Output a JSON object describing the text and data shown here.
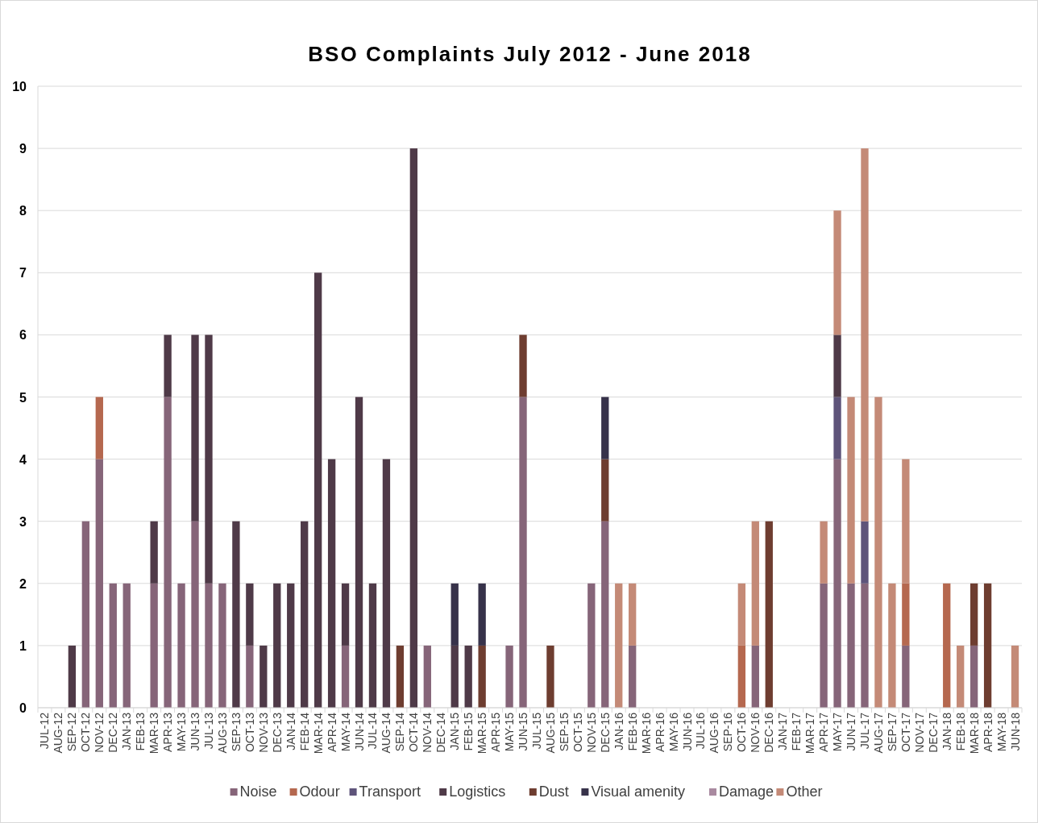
{
  "chart_data": {
    "type": "bar",
    "title": "BSO Complaints  July 2012 - June 2018",
    "stacked": true,
    "grid": "y",
    "legend": "bottom",
    "categories": [
      "JUL-12",
      "AUG-12",
      "SEP-12",
      "OCT-12",
      "NOV-12",
      "DEC-12",
      "JAN-13",
      "FEB-13",
      "MAR-13",
      "APR-13",
      "MAY-13",
      "JUN-13",
      "JUL-13",
      "AUG-13",
      "SEP-13",
      "OCT-13",
      "NOV-13",
      "DEC-13",
      "JAN-14",
      "FEB-14",
      "MAR-14",
      "APR-14",
      "MAY-14",
      "JUN-14",
      "JUL-14",
      "AUG-14",
      "SEP-14",
      "OCT-14",
      "NOV-14",
      "DEC-14",
      "JAN-15",
      "FEB-15",
      "MAR-15",
      "APR-15",
      "MAY-15",
      "JUN-15",
      "JUL-15",
      "AUG-15",
      "SEP-15",
      "OCT-15",
      "NOV-15",
      "DEC-15",
      "JAN-16",
      "FEB-16",
      "MAR-16",
      "APR-16",
      "MAY-16",
      "JUN-16",
      "JUL-16",
      "AUG-16",
      "SEP-16",
      "OCT-16",
      "NOV-16",
      "DEC-16",
      "JAN-17",
      "FEB-17",
      "MAR-17",
      "APR-17",
      "MAY-17",
      "JUN-17",
      "JUL-17",
      "AUG-17",
      "SEP-17",
      "OCT-17",
      "NOV-17",
      "DEC-17",
      "JAN-18",
      "FEB-18",
      "MAR-18",
      "APR-18",
      "MAY-18",
      "JUN-18"
    ],
    "ylim": [
      0,
      10
    ],
    "yticks": [
      0,
      1,
      2,
      3,
      4,
      5,
      6,
      7,
      8,
      9,
      10
    ],
    "series": [
      {
        "name": "Noise",
        "color": "#866579",
        "values": [
          0,
          0,
          0,
          3,
          4,
          2,
          2,
          0,
          2,
          5,
          2,
          3,
          2,
          2,
          0,
          1,
          0,
          0,
          0,
          0,
          0,
          0,
          1,
          0,
          0,
          0,
          0,
          0,
          1,
          0,
          0,
          0,
          0,
          0,
          1,
          5,
          0,
          0,
          0,
          0,
          2,
          3,
          0,
          1,
          0,
          0,
          0,
          0,
          0,
          0,
          0,
          0,
          1,
          0,
          0,
          0,
          0,
          2,
          4,
          2,
          2,
          0,
          0,
          1,
          0,
          0,
          0,
          0,
          1,
          0,
          0,
          0
        ]
      },
      {
        "name": "Odour",
        "color": "#b5684f",
        "values": [
          0,
          0,
          0,
          0,
          1,
          0,
          0,
          0,
          0,
          0,
          0,
          0,
          0,
          0,
          0,
          0,
          0,
          0,
          0,
          0,
          0,
          0,
          0,
          0,
          0,
          0,
          0,
          0,
          0,
          0,
          0,
          0,
          0,
          0,
          0,
          0,
          0,
          0,
          0,
          0,
          0,
          0,
          0,
          0,
          0,
          0,
          0,
          0,
          0,
          0,
          0,
          1,
          0,
          0,
          0,
          0,
          0,
          0,
          0,
          0,
          0,
          0,
          0,
          1,
          0,
          0,
          2,
          0,
          0,
          0,
          0,
          0
        ]
      },
      {
        "name": "Transport",
        "color": "#5e547a",
        "values": [
          0,
          0,
          0,
          0,
          0,
          0,
          0,
          0,
          0,
          0,
          0,
          0,
          0,
          0,
          0,
          0,
          0,
          0,
          0,
          0,
          0,
          0,
          0,
          0,
          0,
          0,
          0,
          0,
          0,
          0,
          0,
          0,
          0,
          0,
          0,
          0,
          0,
          0,
          0,
          0,
          0,
          0,
          0,
          0,
          0,
          0,
          0,
          0,
          0,
          0,
          0,
          0,
          0,
          0,
          0,
          0,
          0,
          0,
          1,
          0,
          1,
          0,
          0,
          0,
          0,
          0,
          0,
          0,
          0,
          0,
          0,
          0
        ]
      },
      {
        "name": "Logistics",
        "color": "#4f3a48",
        "values": [
          0,
          0,
          1,
          0,
          0,
          0,
          0,
          0,
          1,
          1,
          0,
          3,
          4,
          0,
          3,
          1,
          1,
          2,
          2,
          3,
          7,
          4,
          1,
          5,
          2,
          4,
          0,
          9,
          0,
          0,
          1,
          1,
          0,
          0,
          0,
          0,
          0,
          0,
          0,
          0,
          0,
          0,
          0,
          0,
          0,
          0,
          0,
          0,
          0,
          0,
          0,
          0,
          0,
          0,
          0,
          0,
          0,
          0,
          1,
          0,
          0,
          0,
          0,
          0,
          0,
          0,
          0,
          0,
          0,
          0,
          0,
          0
        ]
      },
      {
        "name": "Dust",
        "color": "#6e3d30",
        "values": [
          0,
          0,
          0,
          0,
          0,
          0,
          0,
          0,
          0,
          0,
          0,
          0,
          0,
          0,
          0,
          0,
          0,
          0,
          0,
          0,
          0,
          0,
          0,
          0,
          0,
          0,
          1,
          0,
          0,
          0,
          0,
          0,
          1,
          0,
          0,
          1,
          0,
          1,
          0,
          0,
          0,
          1,
          0,
          0,
          0,
          0,
          0,
          0,
          0,
          0,
          0,
          0,
          0,
          3,
          0,
          0,
          0,
          0,
          0,
          0,
          0,
          0,
          0,
          0,
          0,
          0,
          0,
          0,
          1,
          2,
          0,
          0
        ]
      },
      {
        "name": "Visual amenity",
        "color": "#37324a",
        "values": [
          0,
          0,
          0,
          0,
          0,
          0,
          0,
          0,
          0,
          0,
          0,
          0,
          0,
          0,
          0,
          0,
          0,
          0,
          0,
          0,
          0,
          0,
          0,
          0,
          0,
          0,
          0,
          0,
          0,
          0,
          1,
          0,
          1,
          0,
          0,
          0,
          0,
          0,
          0,
          0,
          0,
          1,
          0,
          0,
          0,
          0,
          0,
          0,
          0,
          0,
          0,
          0,
          0,
          0,
          0,
          0,
          0,
          0,
          0,
          0,
          0,
          0,
          0,
          0,
          0,
          0,
          0,
          0,
          0,
          0,
          0,
          0
        ]
      },
      {
        "name": "Damage",
        "color": "#a98aa0",
        "values": [
          0,
          0,
          0,
          0,
          0,
          0,
          0,
          0,
          0,
          0,
          0,
          0,
          0,
          0,
          0,
          0,
          0,
          0,
          0,
          0,
          0,
          0,
          0,
          0,
          0,
          0,
          0,
          0,
          0,
          0,
          0,
          0,
          0,
          0,
          0,
          0,
          0,
          0,
          0,
          0,
          0,
          0,
          0,
          0,
          0,
          0,
          0,
          0,
          0,
          0,
          0,
          0,
          0,
          0,
          0,
          0,
          0,
          0,
          0,
          0,
          0,
          0,
          0,
          0,
          0,
          0,
          0,
          0,
          0,
          0,
          0,
          0
        ]
      },
      {
        "name": "Other",
        "color": "#c48a77",
        "values": [
          0,
          0,
          0,
          0,
          0,
          0,
          0,
          0,
          0,
          0,
          0,
          0,
          0,
          0,
          0,
          0,
          0,
          0,
          0,
          0,
          0,
          0,
          0,
          0,
          0,
          0,
          0,
          0,
          0,
          0,
          0,
          0,
          0,
          0,
          0,
          0,
          0,
          0,
          0,
          0,
          0,
          0,
          2,
          1,
          0,
          0,
          0,
          0,
          0,
          0,
          0,
          1,
          2,
          0,
          0,
          0,
          0,
          1,
          2,
          3,
          6,
          5,
          2,
          2,
          0,
          0,
          0,
          1,
          0,
          0,
          0,
          1
        ]
      }
    ]
  }
}
